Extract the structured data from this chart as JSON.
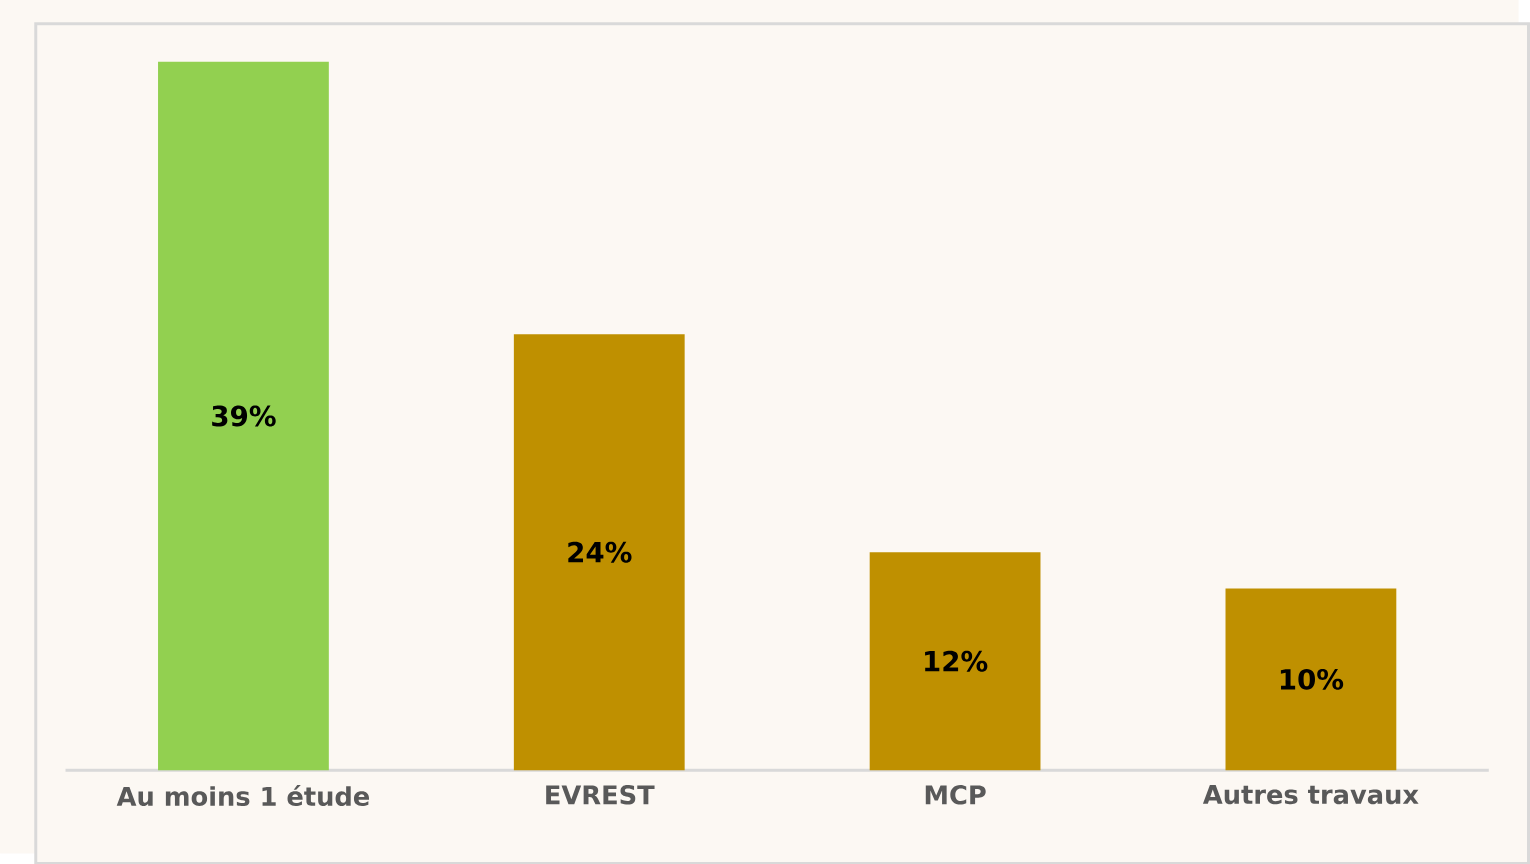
{
  "chart_data": {
    "type": "bar",
    "categories": [
      "Au moins 1 étude",
      "EVREST",
      "MCP",
      "Autres travaux"
    ],
    "values": [
      39,
      24,
      12,
      10
    ],
    "colors": [
      "#92d050",
      "#bf9000",
      "#bf9000",
      "#bf9000"
    ],
    "value_labels": [
      "39%",
      "24%",
      "12%",
      "10%"
    ],
    "tick_labels": "x"
  }
}
